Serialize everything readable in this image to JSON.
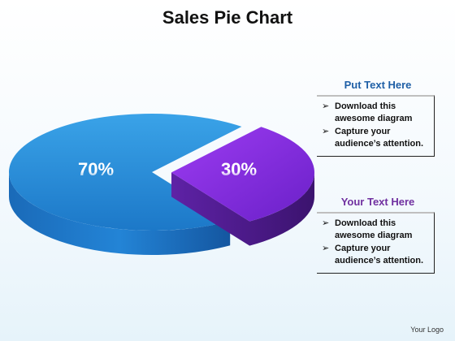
{
  "title": "Sales Pie Chart",
  "colors": {
    "blue_top": "#2a8ed8",
    "blue_side": "#155fa8",
    "purple_top": "#8b2be8",
    "purple_side": "#4a1a8a",
    "panel1_title": "#1f5fa6",
    "panel2_title": "#7030a0"
  },
  "chart_data": {
    "type": "pie",
    "slices": [
      {
        "label": "70%",
        "value": 70
      },
      {
        "label": "30%",
        "value": 30
      }
    ]
  },
  "panels": [
    {
      "title": "Put Text Here",
      "bullets": [
        "Download this awesome diagram",
        "Capture your audience’s attention."
      ]
    },
    {
      "title": "Your  Text Here",
      "bullets": [
        "Download this awesome diagram",
        "Capture your audience’s attention."
      ]
    }
  ],
  "logo": "Your Logo"
}
